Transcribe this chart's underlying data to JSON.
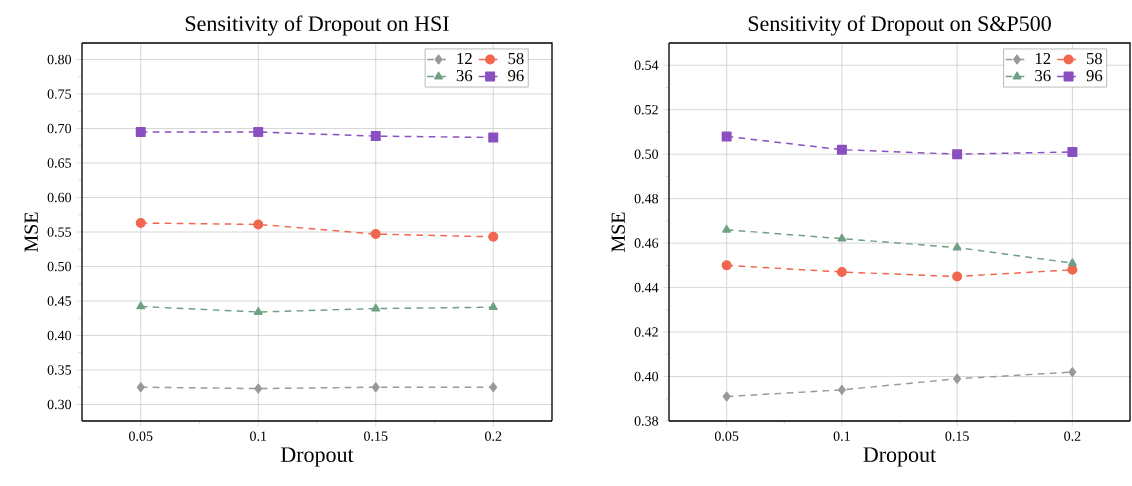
{
  "chart_data": [
    {
      "type": "line",
      "title": "Sensitivity of Dropout on HSI",
      "xlabel": "Dropout",
      "ylabel": "MSE",
      "x": [
        0.05,
        0.1,
        0.15,
        0.2
      ],
      "series": [
        {
          "name": "12",
          "color": "#999999",
          "marker": "diamond",
          "values": [
            0.325,
            0.323,
            0.325,
            0.325
          ]
        },
        {
          "name": "58",
          "color": "#f0664f",
          "marker": "circle",
          "values": [
            0.563,
            0.561,
            0.547,
            0.543
          ]
        },
        {
          "name": "36",
          "color": "#6fa083",
          "marker": "triangle",
          "values": [
            0.442,
            0.434,
            0.439,
            0.441
          ]
        },
        {
          "name": "96",
          "color": "#8a4fc0",
          "marker": "square",
          "values": [
            0.695,
            0.695,
            0.689,
            0.687
          ]
        }
      ],
      "xlim": [
        0.025,
        0.225
      ],
      "ylim": [
        0.276,
        0.824
      ],
      "xticks": [
        0.05,
        0.1,
        0.15,
        0.2
      ],
      "yticks": [
        {
          "value": 0.3,
          "label": "0.30"
        },
        0.35,
        {
          "value": 0.4,
          "label": "0.40"
        },
        0.45,
        {
          "value": 0.5,
          "label": "0.50"
        },
        0.55,
        {
          "value": 0.6,
          "label": "0.60"
        },
        0.65,
        {
          "value": 0.7,
          "label": "0.70"
        },
        0.75,
        {
          "value": 0.8,
          "label": "0.80"
        }
      ],
      "grid": true,
      "legend": "top right",
      "line_style": "dashed"
    },
    {
      "type": "line",
      "title": "Sensitivity of Dropout on S&P500",
      "xlabel": "Dropout",
      "ylabel": "MSE",
      "x": [
        0.05,
        0.1,
        0.15,
        0.2
      ],
      "series": [
        {
          "name": "12",
          "color": "#999999",
          "marker": "diamond",
          "values": [
            0.391,
            0.394,
            0.399,
            0.402
          ]
        },
        {
          "name": "58",
          "color": "#f0664f",
          "marker": "circle",
          "values": [
            0.45,
            0.447,
            0.445,
            0.448
          ]
        },
        {
          "name": "36",
          "color": "#6fa083",
          "marker": "triangle",
          "values": [
            0.466,
            0.462,
            0.458,
            0.451
          ]
        },
        {
          "name": "96",
          "color": "#8a4fc0",
          "marker": "square",
          "values": [
            0.508,
            0.502,
            0.5,
            0.501
          ]
        }
      ],
      "xlim": [
        0.025,
        0.225
      ],
      "ylim": [
        0.38,
        0.55
      ],
      "xticks": [
        0.05,
        0.1,
        0.15,
        0.2
      ],
      "yticks": [
        0.38,
        {
          "value": 0.4,
          "label": "0.40"
        },
        0.42,
        0.44,
        0.46,
        0.48,
        {
          "value": 0.5,
          "label": "0.50"
        },
        0.52,
        0.54
      ],
      "grid": true,
      "legend": "top right",
      "line_style": "dashed"
    }
  ]
}
